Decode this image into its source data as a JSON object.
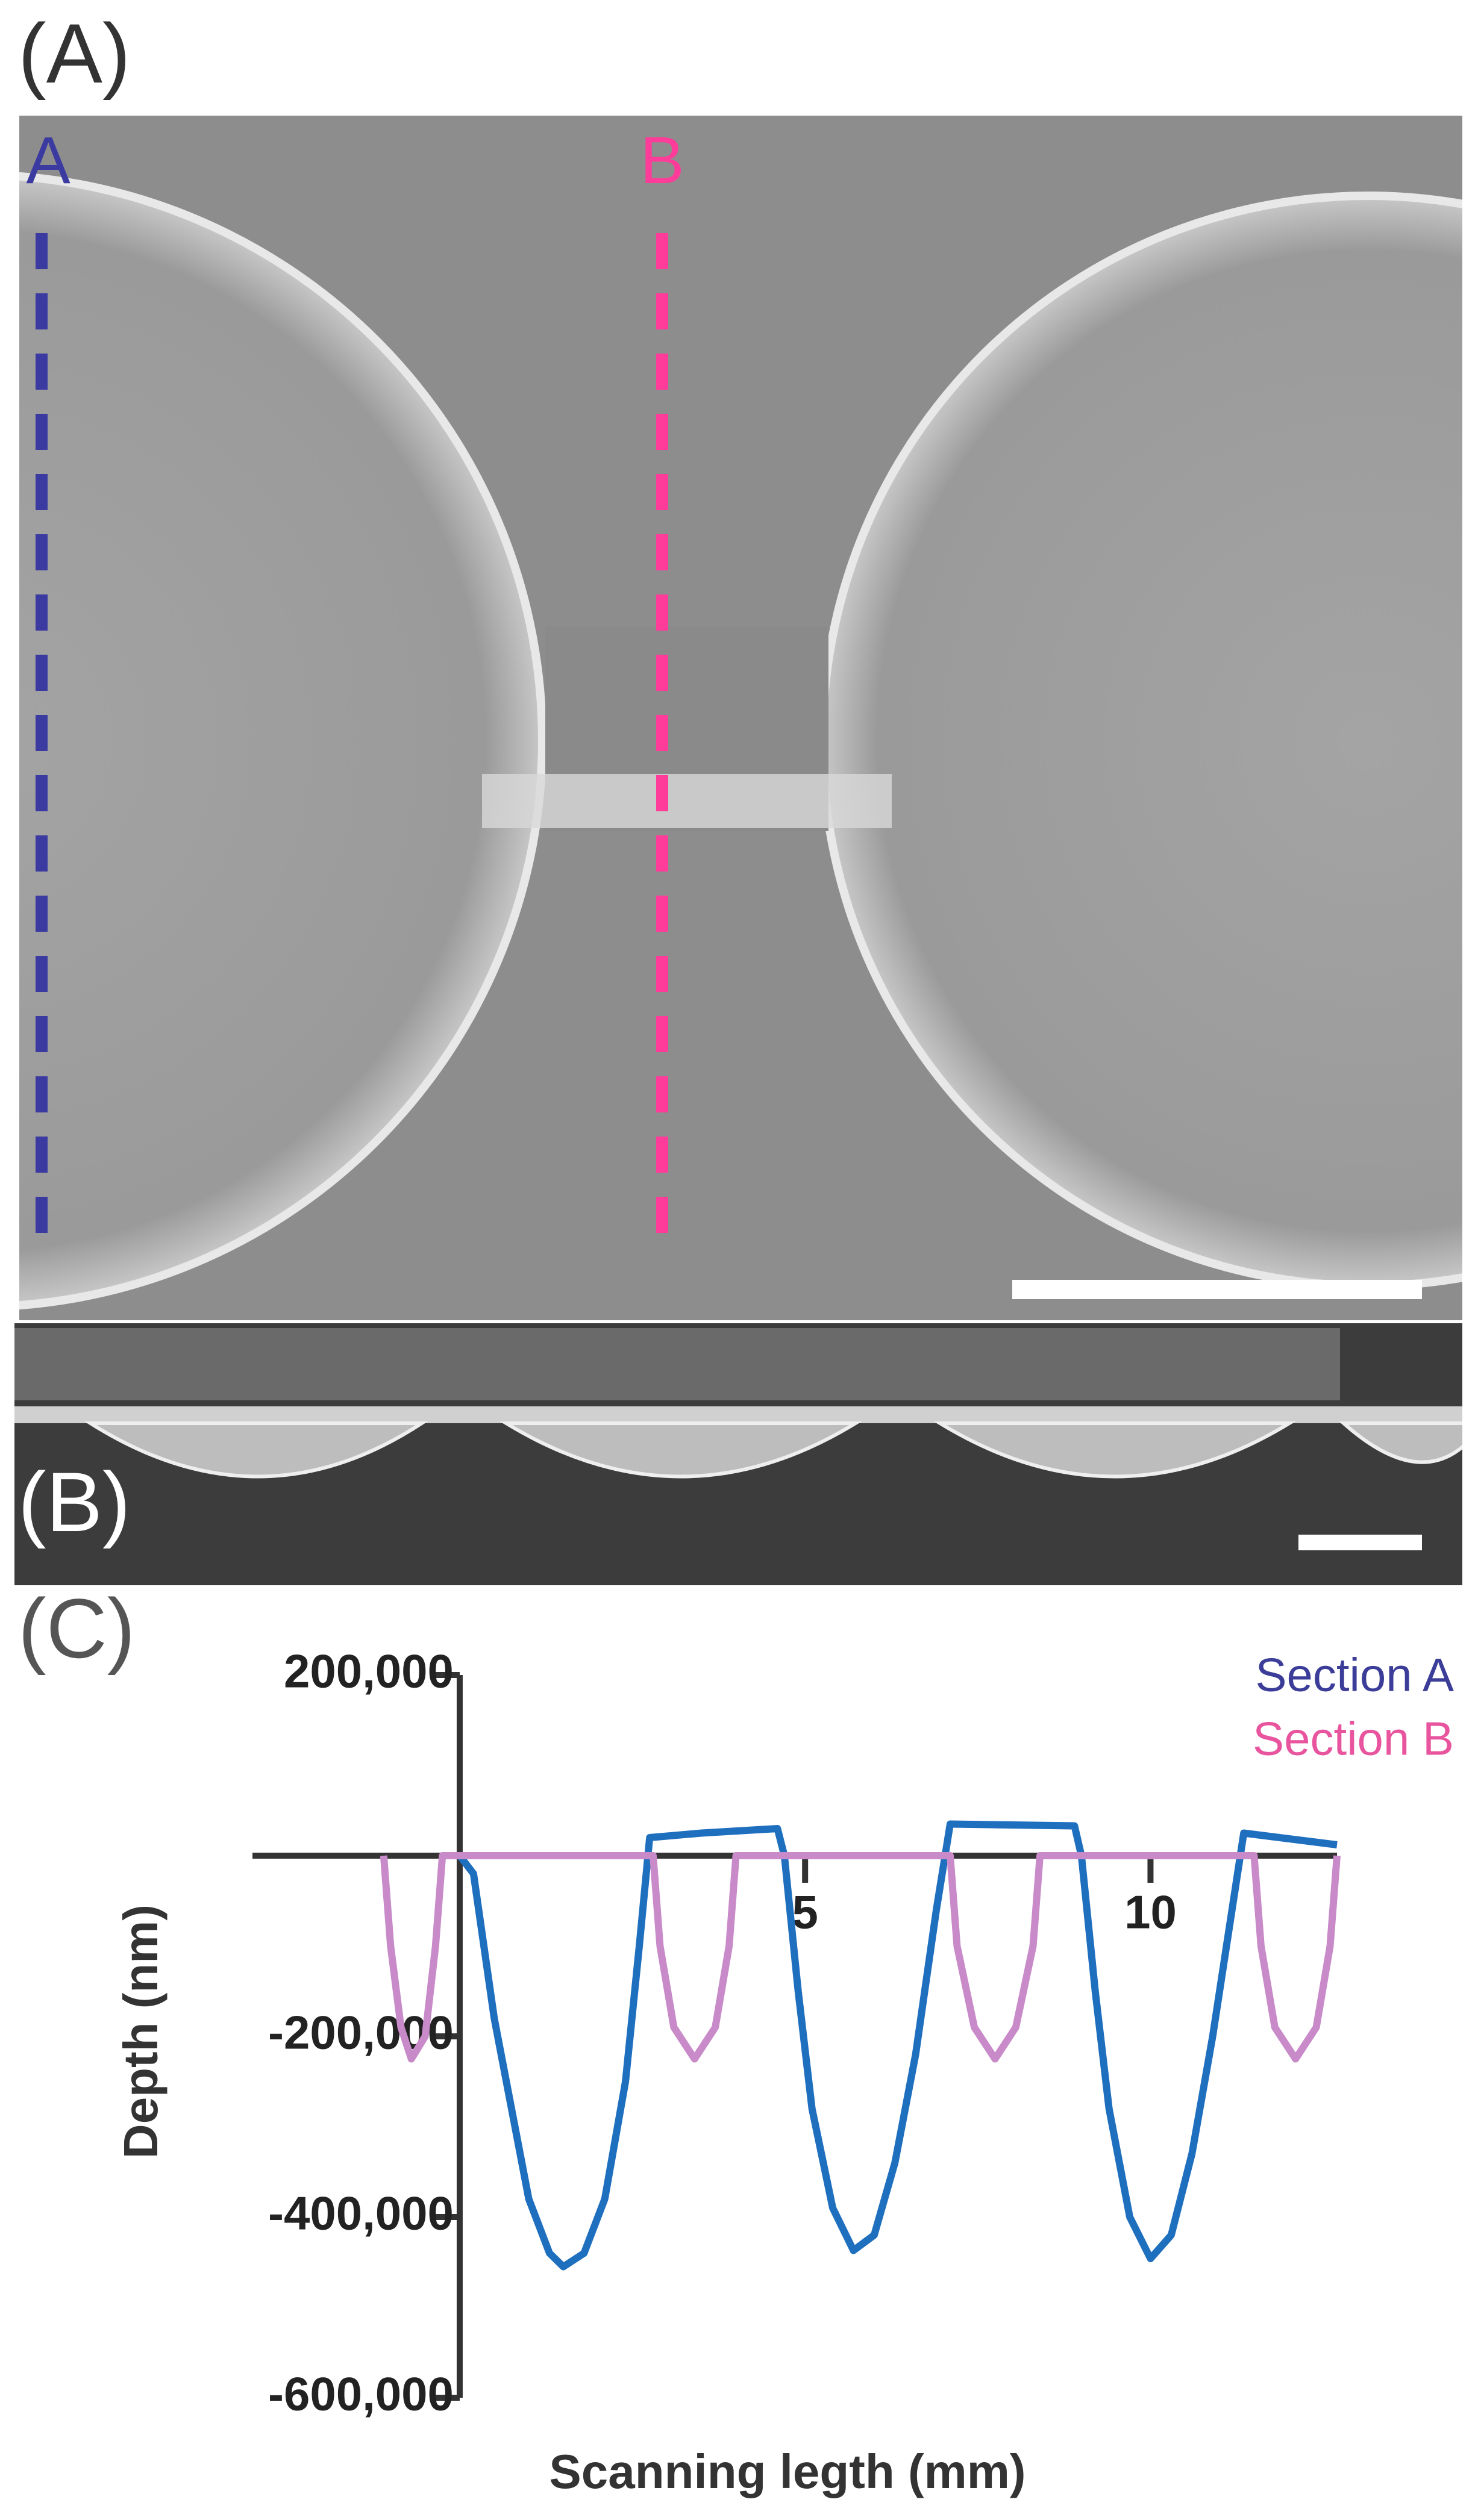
{
  "panel_labels": [
    "(A)",
    "(B)",
    "(C)"
  ],
  "section_labels": [
    "A",
    "B"
  ],
  "chart_data": {
    "type": "line",
    "xlabel": "Scanning legth (mm)",
    "ylabel": "Depth (nm)",
    "xlim": [
      -3,
      12.7
    ],
    "ylim": [
      -600000,
      200000
    ],
    "xticks": [
      5,
      10
    ],
    "yticks": [
      {
        "value": 200000,
        "label": "200,000"
      },
      {
        "value": -200000,
        "label": "-200,000"
      },
      {
        "value": -400000,
        "label": "-400,000"
      },
      {
        "value": -600000,
        "label": "-600,000"
      }
    ],
    "series": [
      {
        "name": "Section A",
        "color": "#1f6fbf",
        "x": [
          0,
          0.2,
          0.5,
          0.8,
          1.0,
          1.3,
          1.5,
          1.8,
          2.1,
          2.4,
          2.6,
          2.75,
          3.5,
          4.6,
          4.7,
          4.9,
          5.1,
          5.4,
          5.7,
          6.0,
          6.3,
          6.6,
          6.9,
          7.1,
          8.9,
          9.0,
          9.2,
          9.4,
          9.7,
          10.0,
          10.3,
          10.6,
          10.9,
          11.2,
          11.35,
          12.7
        ],
        "values": [
          0,
          -20000,
          -180000,
          -300000,
          -380000,
          -440000,
          -455000,
          -440000,
          -380000,
          -250000,
          -100000,
          20000,
          25000,
          30000,
          0,
          -150000,
          -280000,
          -390000,
          -437000,
          -420000,
          -340000,
          -220000,
          -60000,
          35000,
          33000,
          0,
          -150000,
          -280000,
          -400000,
          -446000,
          -420000,
          -330000,
          -200000,
          -50000,
          25000,
          12000
        ]
      },
      {
        "name": "Section B",
        "color": "#c88ac8",
        "x": [
          -1.1,
          -1.0,
          -0.85,
          -0.7,
          -0.5,
          -0.35,
          -0.25,
          2.8,
          2.9,
          3.1,
          3.4,
          3.7,
          3.9,
          4.0,
          7.1,
          7.2,
          7.45,
          7.75,
          8.05,
          8.3,
          8.4,
          11.5,
          11.6,
          11.8,
          12.1,
          12.4,
          12.6,
          12.7
        ],
        "values": [
          0,
          -100000,
          -190000,
          -225000,
          -200000,
          -100000,
          0,
          0,
          -100000,
          -190000,
          -225000,
          -190000,
          -100000,
          0,
          0,
          -100000,
          -190000,
          -225000,
          -190000,
          -100000,
          0,
          0,
          -100000,
          -190000,
          -225000,
          -190000,
          -100000,
          0
        ]
      }
    ]
  }
}
